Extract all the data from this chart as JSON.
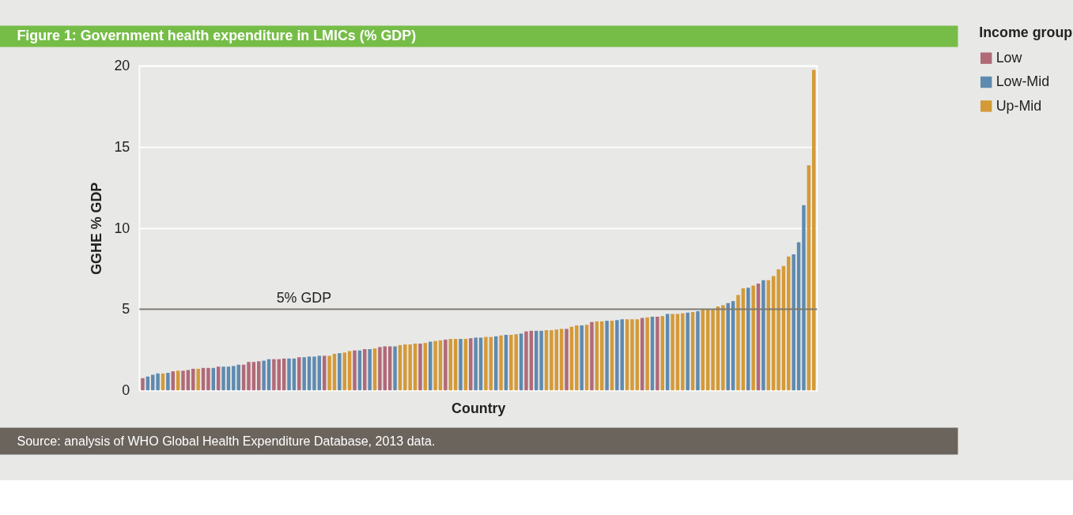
{
  "chart_data": {
    "type": "bar",
    "title": "Figure 1: Government health expenditure in LMICs (% GDP)",
    "xlabel": "Country",
    "ylabel": "GGHE % GDP",
    "legend_title": "Income group",
    "legend": "top right",
    "grid": "y",
    "annotations": [
      "Source: analysis of WHO Global Health Expenditure Database, 2013 data."
    ],
    "categories": [
      null,
      null,
      null,
      null,
      null,
      null,
      null,
      null,
      null,
      null,
      null,
      null,
      null,
      null,
      null,
      null,
      null,
      null,
      null,
      null,
      null,
      null,
      null,
      null,
      null,
      null,
      null,
      null,
      null,
      null,
      null,
      null,
      null,
      null,
      null,
      null,
      null,
      null,
      null,
      null,
      null,
      null,
      null,
      null,
      null,
      null,
      null,
      null,
      null,
      null,
      null,
      null,
      null,
      null,
      null,
      null,
      null,
      null,
      null,
      null,
      null,
      null,
      null,
      null,
      null,
      null,
      null,
      null,
      null,
      null,
      null,
      null,
      null,
      null,
      null,
      null,
      null,
      null,
      null,
      null,
      null,
      null,
      null,
      null,
      null,
      null,
      null,
      null,
      null,
      null,
      null,
      null,
      null,
      null,
      null,
      null,
      null,
      null,
      null,
      null,
      null,
      null,
      null,
      null,
      null,
      null,
      null,
      null,
      null,
      null,
      null,
      null,
      null,
      null,
      null,
      null,
      null,
      null,
      null,
      null,
      null,
      null,
      null,
      null,
      null,
      null,
      null,
      null,
      null,
      null,
      null,
      null,
      null,
      null
    ],
    "ylim": [
      0,
      20
    ],
    "yticks": [
      0,
      5,
      10,
      15,
      20
    ],
    "ref_lines": [
      {
        "axis": "y",
        "value": 5,
        "label": "5% GDP",
        "color": "#7d7870"
      }
    ],
    "series": [
      {
        "name": "Low",
        "color": "#b06a78",
        "values": [
          0.75,
          null,
          null,
          null,
          null,
          null,
          1.17,
          null,
          1.21,
          1.25,
          1.33,
          null,
          1.38,
          1.38,
          null,
          1.46,
          null,
          null,
          null,
          null,
          1.58,
          1.75,
          1.75,
          1.79,
          null,
          null,
          1.92,
          1.92,
          1.96,
          null,
          null,
          2.04,
          null,
          null,
          null,
          null,
          2.13,
          null,
          null,
          null,
          null,
          null,
          2.46,
          null,
          2.54,
          null,
          null,
          2.67,
          2.71,
          2.71,
          null,
          null,
          null,
          null,
          null,
          2.88,
          null,
          null,
          null,
          null,
          3.13,
          null,
          null,
          null,
          null,
          3.21,
          null,
          null,
          null,
          null,
          null,
          null,
          null,
          null,
          null,
          null,
          3.63,
          3.67,
          null,
          null,
          null,
          null,
          null,
          null,
          3.79,
          null,
          null,
          null,
          null,
          4.21,
          null,
          null,
          null,
          null,
          null,
          null,
          null,
          null,
          null,
          4.46,
          null,
          null,
          4.54,
          null,
          null,
          null,
          null,
          null,
          null,
          null,
          null,
          null,
          null,
          null,
          null,
          null,
          null,
          null,
          null,
          null,
          null,
          null,
          6.58,
          null,
          null,
          null,
          null,
          null,
          null,
          null,
          null,
          null,
          null,
          null
        ]
      },
      {
        "name": "Low-Mid",
        "color": "#5f8ab0",
        "values": [
          null,
          0.85,
          0.96,
          1.04,
          null,
          1.08,
          null,
          null,
          null,
          null,
          null,
          null,
          null,
          null,
          1.38,
          null,
          1.46,
          1.46,
          1.5,
          1.58,
          null,
          null,
          null,
          null,
          1.83,
          1.92,
          null,
          null,
          null,
          1.96,
          1.96,
          null,
          2.04,
          2.08,
          2.08,
          2.13,
          null,
          null,
          null,
          2.29,
          null,
          null,
          null,
          2.46,
          null,
          2.54,
          null,
          null,
          null,
          null,
          2.71,
          null,
          null,
          null,
          null,
          null,
          null,
          3.0,
          null,
          null,
          null,
          null,
          null,
          3.17,
          null,
          null,
          3.25,
          3.25,
          null,
          null,
          3.33,
          null,
          3.42,
          null,
          null,
          3.5,
          null,
          null,
          3.67,
          3.67,
          null,
          null,
          null,
          null,
          null,
          null,
          null,
          4.0,
          null,
          null,
          null,
          null,
          4.29,
          null,
          4.33,
          4.38,
          null,
          null,
          null,
          null,
          null,
          4.54,
          null,
          null,
          4.71,
          null,
          null,
          null,
          4.79,
          null,
          4.88,
          null,
          null,
          null,
          null,
          null,
          5.38,
          5.5,
          null,
          null,
          6.33,
          null,
          null,
          6.79,
          null,
          null,
          null,
          null,
          null,
          8.38,
          9.13,
          11.42,
          null,
          null
        ]
      },
      {
        "name": "Up-Mid",
        "color": "#d49a38",
        "values": [
          null,
          null,
          null,
          null,
          1.04,
          null,
          null,
          1.21,
          null,
          null,
          null,
          1.33,
          null,
          null,
          null,
          null,
          null,
          null,
          null,
          null,
          null,
          null,
          null,
          null,
          null,
          null,
          null,
          null,
          null,
          null,
          null,
          null,
          null,
          null,
          null,
          null,
          null,
          2.13,
          2.25,
          null,
          2.33,
          2.42,
          null,
          null,
          null,
          null,
          2.58,
          null,
          null,
          null,
          null,
          2.79,
          2.83,
          2.83,
          2.88,
          null,
          2.92,
          null,
          3.04,
          3.08,
          null,
          3.17,
          3.17,
          null,
          3.17,
          null,
          null,
          null,
          3.29,
          3.29,
          null,
          3.38,
          null,
          3.42,
          3.46,
          null,
          null,
          null,
          null,
          null,
          3.71,
          3.71,
          3.75,
          3.79,
          null,
          3.92,
          4.0,
          null,
          4.04,
          null,
          4.25,
          4.25,
          null,
          4.29,
          null,
          null,
          4.38,
          4.38,
          4.38,
          null,
          4.5,
          null,
          null,
          4.58,
          null,
          4.71,
          4.71,
          4.75,
          null,
          4.83,
          null,
          4.97,
          4.97,
          4.97,
          5.17,
          5.25,
          null,
          null,
          5.88,
          6.29,
          null,
          6.46,
          null,
          null,
          6.79,
          7.04,
          7.46,
          7.67,
          8.25,
          null,
          null,
          null,
          13.88,
          19.75
        ]
      }
    ]
  }
}
